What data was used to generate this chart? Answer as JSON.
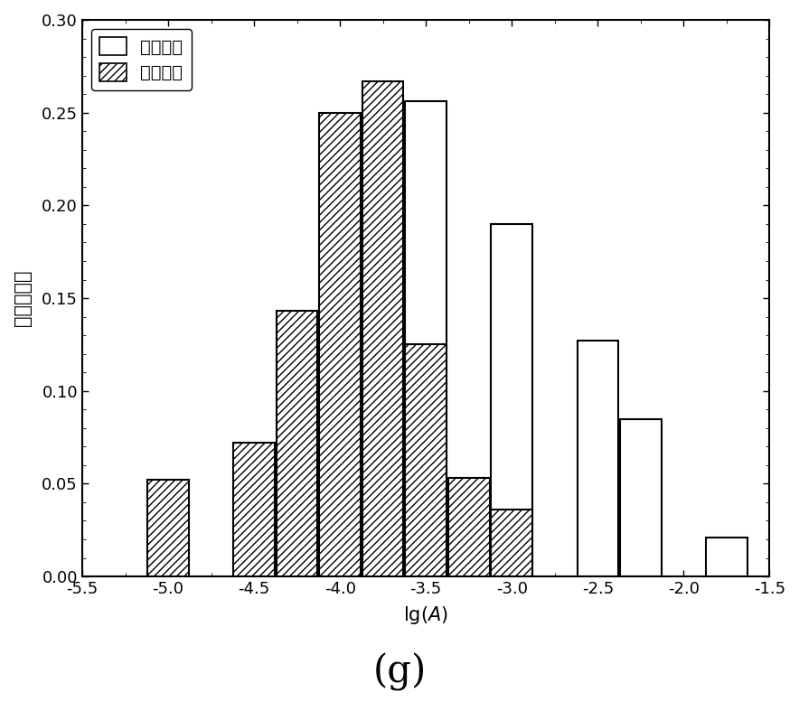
{
  "blast_centers": [
    -4.0,
    -3.75,
    -3.5,
    -3.0,
    -2.5,
    -2.25,
    -1.75
  ],
  "blast_heights": [
    0.04,
    0.213,
    0.256,
    0.19,
    0.127,
    0.085,
    0.021
  ],
  "micro_centers": [
    -5.0,
    -4.5,
    -4.25,
    -4.0,
    -3.75,
    -3.5,
    -3.25,
    -3.0
  ],
  "micro_heights": [
    0.052,
    0.072,
    0.143,
    0.25,
    0.267,
    0.125,
    0.053,
    0.036
  ],
  "bar_width": 0.24,
  "xlim": [
    -5.5,
    -1.5
  ],
  "ylim": [
    0.0,
    0.3
  ],
  "xticks": [
    -5.5,
    -5.0,
    -4.5,
    -4.0,
    -3.5,
    -3.0,
    -2.5,
    -2.0,
    -1.5
  ],
  "yticks": [
    0.0,
    0.05,
    0.1,
    0.15,
    0.2,
    0.25,
    0.3
  ],
  "xlabel": "lg(A)",
  "ylabel": "事件的频次",
  "legend_blast": "爆破事件",
  "legend_micro": "微震事件",
  "subtitle": "(g)",
  "hatch_pattern": "////",
  "blast_color": "white",
  "micro_color": "white",
  "edge_color": "black",
  "background_color": "white",
  "linewidth": 1.5
}
